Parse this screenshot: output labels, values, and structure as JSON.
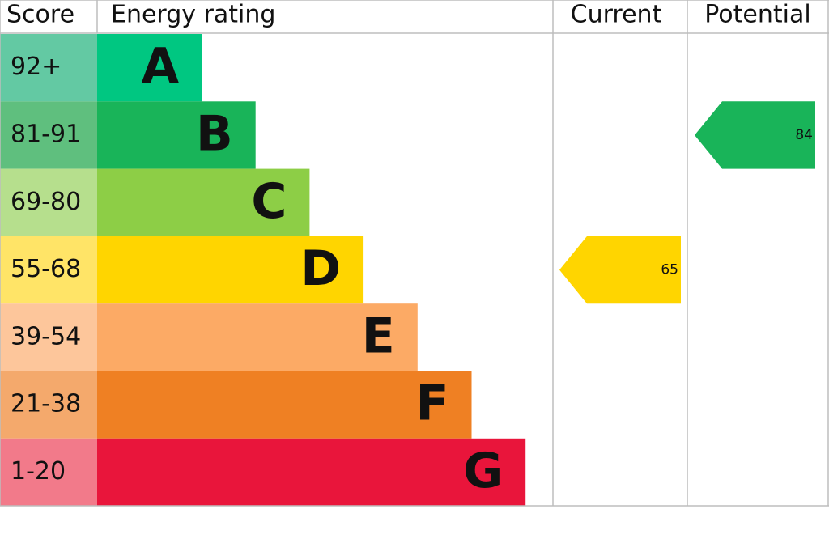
{
  "chart_data": {
    "type": "epc",
    "headers": [
      "Score",
      "Energy rating",
      "Current",
      "Potential"
    ],
    "bands": [
      {
        "range": "92+",
        "letter": "A",
        "color": "#00c781",
        "score_color": "#63c9a3"
      },
      {
        "range": "81-91",
        "letter": "B",
        "color": "#19b459",
        "score_color": "#5fbf7e"
      },
      {
        "range": "69-80",
        "letter": "C",
        "color": "#8dce46",
        "score_color": "#b6df8d"
      },
      {
        "range": "55-68",
        "letter": "D",
        "color": "#ffd500",
        "score_color": "#ffe467"
      },
      {
        "range": "39-54",
        "letter": "E",
        "color": "#fcaa65",
        "score_color": "#fdc69b"
      },
      {
        "range": "21-38",
        "letter": "F",
        "color": "#ef8023",
        "score_color": "#f4a96c"
      },
      {
        "range": "1-20",
        "letter": "G",
        "color": "#e9153b",
        "score_color": "#f27a8a"
      }
    ],
    "current": 65,
    "potential": 84
  }
}
